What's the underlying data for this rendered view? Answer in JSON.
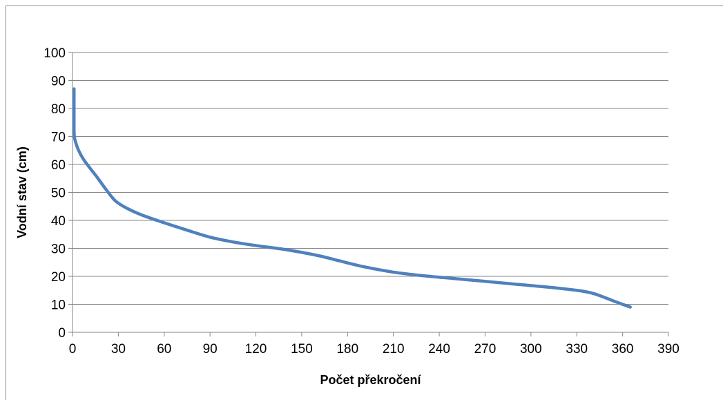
{
  "chart_data": {
    "type": "line",
    "title": "",
    "xlabel": "Počet překročení",
    "ylabel": "Vodní stav (cm)",
    "xlim": [
      0,
      390
    ],
    "ylim": [
      0,
      100
    ],
    "xticks": [
      0,
      30,
      60,
      90,
      120,
      150,
      180,
      210,
      240,
      270,
      300,
      330,
      360,
      390
    ],
    "yticks": [
      0,
      10,
      20,
      30,
      40,
      50,
      60,
      70,
      80,
      90,
      100
    ],
    "grid": "horizontal",
    "legend": "none",
    "series": [
      {
        "color": "#4f81bd",
        "x": [
          1,
          1,
          1,
          1.2,
          2,
          4,
          7,
          11,
          16,
          22,
          28,
          35,
          45,
          58,
          75,
          90,
          105,
          120,
          140,
          160,
          175,
          190,
          210,
          230,
          250,
          270,
          290,
          310,
          330,
          340,
          348,
          355,
          360,
          365
        ],
        "y": [
          87,
          80,
          73,
          70,
          68,
          65,
          62,
          59,
          55.5,
          51,
          47,
          44.5,
          42,
          39.5,
          36.5,
          34,
          32.3,
          31,
          29.5,
          27.5,
          25.5,
          23.5,
          21.5,
          20.2,
          19.2,
          18.2,
          17.2,
          16.2,
          15,
          14,
          12.5,
          11,
          10,
          9
        ]
      }
    ]
  }
}
